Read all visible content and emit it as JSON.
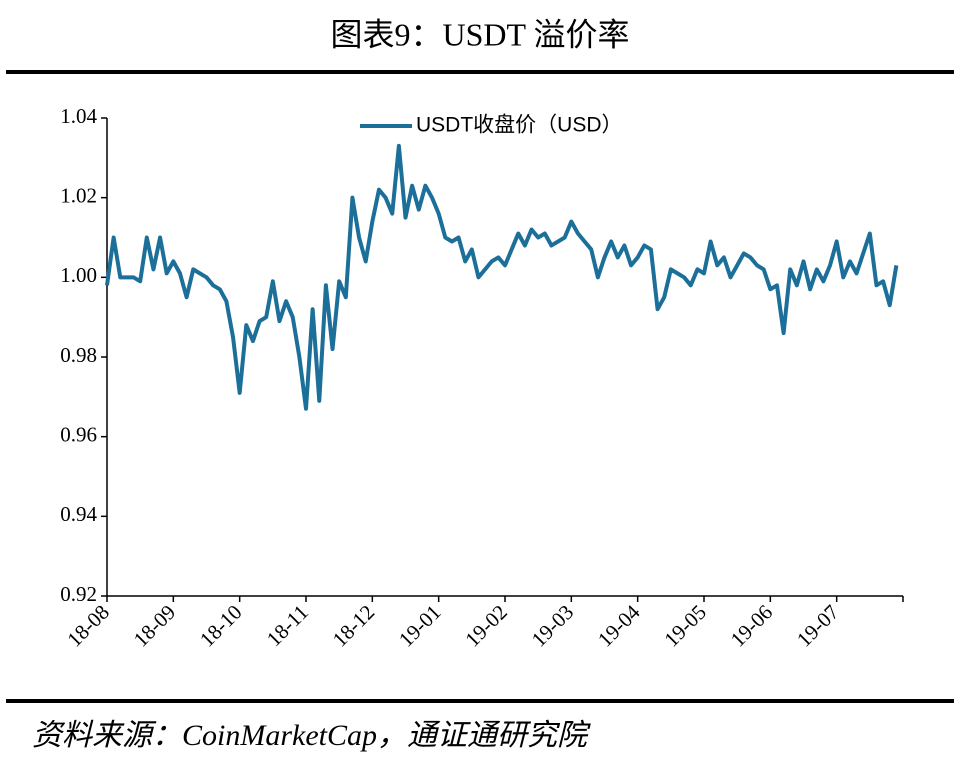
{
  "chart_data": {
    "type": "line",
    "title": "图表9：USDT 溢价率",
    "source": "资料来源：CoinMarketCap，通证通研究院",
    "categories": [
      "18-08",
      null,
      null,
      null,
      null,
      null,
      null,
      null,
      null,
      null,
      "18-09",
      null,
      null,
      null,
      null,
      null,
      null,
      null,
      null,
      null,
      "18-10",
      null,
      null,
      null,
      null,
      null,
      null,
      null,
      null,
      null,
      "18-11",
      null,
      null,
      null,
      null,
      null,
      null,
      null,
      null,
      null,
      "18-12",
      null,
      null,
      null,
      null,
      null,
      null,
      null,
      null,
      null,
      "19-01",
      null,
      null,
      null,
      null,
      null,
      null,
      null,
      null,
      null,
      "19-02",
      null,
      null,
      null,
      null,
      null,
      null,
      null,
      null,
      null,
      "19-03",
      null,
      null,
      null,
      null,
      null,
      null,
      null,
      null,
      null,
      "19-04",
      null,
      null,
      null,
      null,
      null,
      null,
      null,
      null,
      null,
      "19-05",
      null,
      null,
      null,
      null,
      null,
      null,
      null,
      null,
      null,
      "19-06",
      null,
      null,
      null,
      null,
      null,
      null,
      null,
      null,
      null,
      "19-07",
      null,
      null,
      null,
      null,
      null,
      null,
      null,
      null,
      null
    ],
    "series": [
      {
        "name": "USDT收盘价（USD）",
        "color": "#1b6f98",
        "values": [
          0.998,
          1.01,
          1.0,
          1.0,
          1.0,
          0.999,
          1.01,
          1.002,
          1.01,
          1.001,
          1.004,
          1.001,
          0.995,
          1.002,
          1.001,
          1.0,
          0.998,
          0.997,
          0.994,
          0.985,
          0.971,
          0.988,
          0.984,
          0.989,
          0.99,
          0.999,
          0.989,
          0.994,
          0.99,
          0.98,
          0.967,
          0.992,
          0.969,
          0.998,
          0.982,
          0.999,
          0.995,
          1.02,
          1.01,
          1.004,
          1.014,
          1.022,
          1.02,
          1.016,
          1.033,
          1.015,
          1.023,
          1.017,
          1.023,
          1.02,
          1.016,
          1.01,
          1.009,
          1.01,
          1.004,
          1.007,
          1.0,
          1.002,
          1.004,
          1.005,
          1.003,
          1.007,
          1.011,
          1.008,
          1.012,
          1.01,
          1.011,
          1.008,
          1.009,
          1.01,
          1.014,
          1.011,
          1.009,
          1.007,
          1.0,
          1.005,
          1.009,
          1.005,
          1.008,
          1.003,
          1.005,
          1.008,
          1.007,
          0.992,
          0.995,
          1.002,
          1.001,
          1.0,
          0.998,
          1.002,
          1.001,
          1.009,
          1.003,
          1.005,
          1.0,
          1.003,
          1.006,
          1.005,
          1.003,
          1.002,
          0.997,
          0.998,
          0.986,
          1.002,
          0.998,
          1.004,
          0.997,
          1.002,
          0.999,
          1.003,
          1.009,
          1.0,
          1.004,
          1.001,
          1.006,
          1.011,
          0.998,
          0.999,
          0.993,
          1.003
        ]
      }
    ],
    "ylim": [
      0.92,
      1.04
    ],
    "yticks": [
      0.92,
      0.94,
      0.96,
      0.98,
      {
        "value": 1.0,
        "label": "1.00"
      },
      1.02,
      1.04
    ],
    "legend": "top",
    "grid": false
  }
}
